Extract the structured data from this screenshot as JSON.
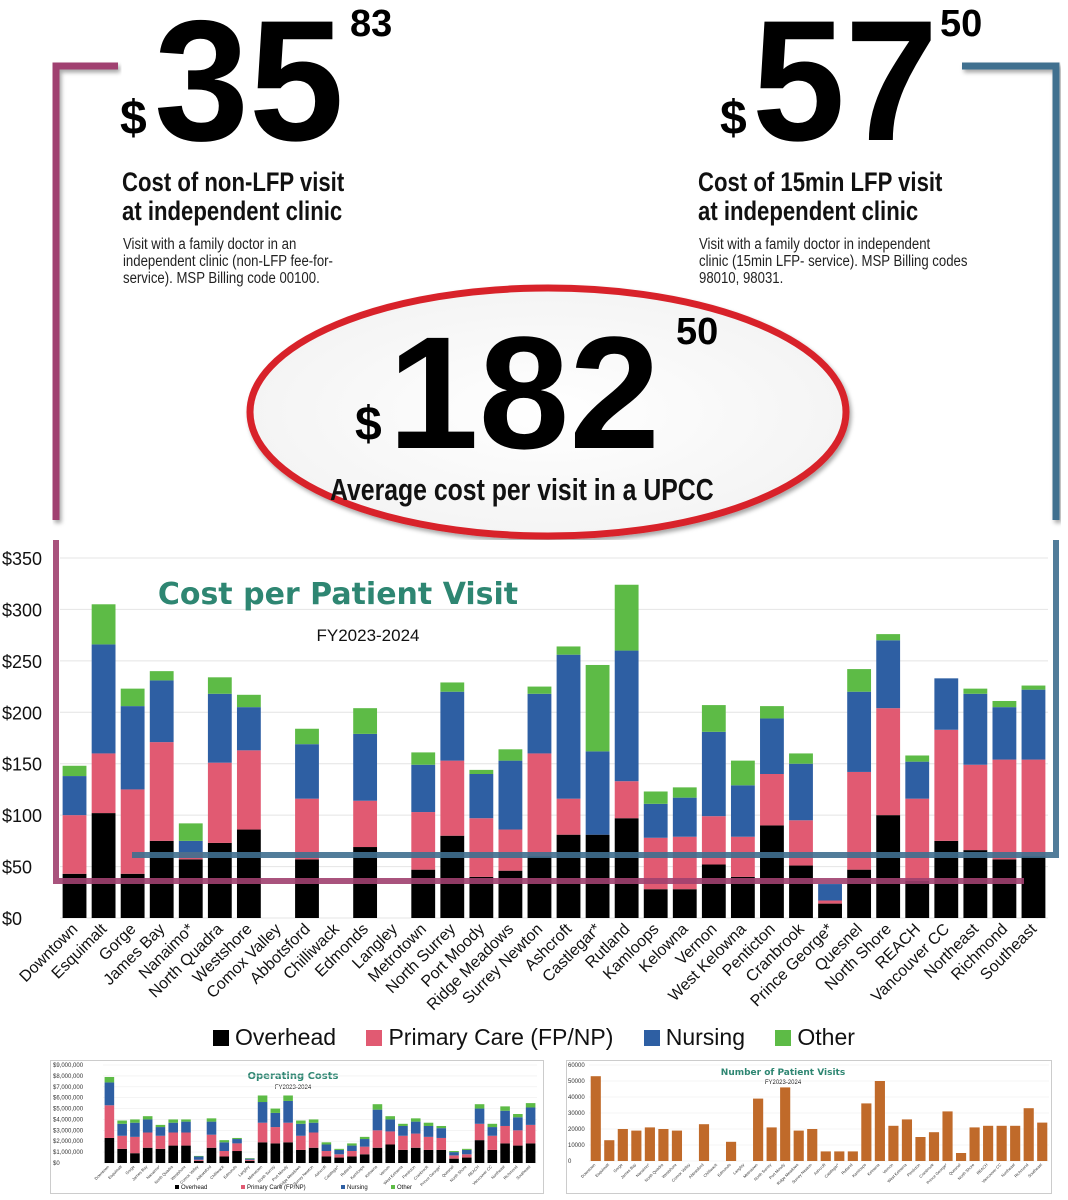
{
  "headline": {
    "non_lfp": {
      "currency": "$",
      "dollars": "35",
      "cents": "83",
      "title": "Cost of non-LFP visit\nat independent clinic",
      "description": "Visit with a family doctor in an\nindependent clinic (non-LFP fee-for-\nservice). MSP Billing code 00100."
    },
    "lfp": {
      "currency": "$",
      "dollars": "57",
      "cents": "50",
      "title": "Cost of 15min LFP visit\nat independent clinic",
      "description": "Visit with a family doctor in independent\nclinic (15min LFP- service).  MSP Billing codes\n98010, 98031."
    },
    "upcc": {
      "currency": "$",
      "dollars": "182",
      "cents": "50",
      "label": "Average cost per visit in a UPCC"
    }
  },
  "colors": {
    "overhead": "#000000",
    "primary_care": "#e15a72",
    "nursing": "#2e5fa3",
    "other": "#5dbb46",
    "title_green": "#2e8672",
    "orange": "#c06a2a",
    "magenta_bracket": "#a0406f",
    "blue_bracket": "#3f6f8f",
    "red_ellipse": "#d8242a"
  },
  "legend": [
    {
      "label": "Overhead",
      "color": "#000000"
    },
    {
      "label": "Primary Care (FP/NP)",
      "color": "#e15a72"
    },
    {
      "label": "Nursing",
      "color": "#2e5fa3"
    },
    {
      "label": "Other",
      "color": "#5dbb46"
    }
  ],
  "chart_data": [
    {
      "type": "bar",
      "stacked": true,
      "title": "Cost per Patient Visit",
      "subtitle": "FY2023-2024",
      "ylim": [
        0,
        350
      ],
      "yticks": [
        "$0",
        "$50",
        "$100",
        "$150",
        "$200",
        "$250",
        "$300",
        "$350"
      ],
      "categories": [
        "Downtown",
        "Esquimalt",
        "Gorge",
        "James Bay",
        "Nanaimo*",
        "North Quadra",
        "Westshore",
        "Comox Valley",
        "Abbotsford",
        "Chilliwack",
        "Edmonds",
        "Langley",
        "Metrotown",
        "North Surrey",
        "Port Moody",
        "Ridge Meadows",
        "Surrey Newton",
        "Ashcroft",
        "Castlegar*",
        "Rutland",
        "Kamloops",
        "Kelowna",
        "Vernon",
        "West Kelowna",
        "Penticton",
        "Cranbrook",
        "Prince George*",
        "Quesnel",
        "North Shore",
        "REACH",
        "Vancouver CC",
        "Northeast",
        "Richmond",
        "Southeast"
      ],
      "series": [
        {
          "name": "Overhead",
          "values": [
            43,
            102,
            43,
            75,
            57,
            73,
            86,
            0,
            57,
            0,
            69,
            0,
            47,
            80,
            40,
            46,
            60,
            81,
            81,
            97,
            28,
            28,
            52,
            40,
            90,
            51,
            14,
            47,
            100,
            36,
            75,
            66,
            57,
            60
          ]
        },
        {
          "name": "Primary Care (FP/NP)",
          "values": [
            57,
            58,
            82,
            96,
            7,
            78,
            77,
            0,
            59,
            0,
            45,
            0,
            56,
            73,
            57,
            40,
            100,
            35,
            0,
            36,
            50,
            51,
            47,
            39,
            50,
            44,
            3,
            95,
            104,
            80,
            108,
            83,
            97,
            94
          ]
        },
        {
          "name": "Nursing",
          "values": [
            38,
            106,
            81,
            60,
            11,
            67,
            42,
            0,
            53,
            0,
            65,
            0,
            46,
            67,
            43,
            67,
            58,
            140,
            81,
            127,
            33,
            38,
            82,
            50,
            54,
            55,
            16,
            78,
            66,
            36,
            50,
            69,
            51,
            68
          ]
        },
        {
          "name": "Other",
          "values": [
            10,
            39,
            17,
            9,
            17,
            16,
            12,
            0,
            15,
            0,
            25,
            0,
            12,
            9,
            4,
            11,
            7,
            8,
            84,
            64,
            12,
            10,
            26,
            24,
            12,
            10,
            0,
            22,
            6,
            6,
            0,
            5,
            6,
            4
          ]
        }
      ]
    },
    {
      "type": "bar",
      "stacked": true,
      "title": "Operating Costs",
      "subtitle": "FY2023-2024",
      "ylim": [
        0,
        9000000
      ],
      "yticks": [
        "$0",
        "$1,000,000",
        "$2,000,000",
        "$3,000,000",
        "$4,000,000",
        "$5,000,000",
        "$6,000,000",
        "$7,000,000",
        "$8,000,000",
        "$9,000,000"
      ],
      "categories": [
        "Downtown",
        "Esquimalt",
        "Gorge",
        "James Bay",
        "Nanaimo*",
        "North Quadra",
        "Westshore",
        "Comox Valley",
        "Abbotsford",
        "Chilliwack",
        "Edmonds",
        "Langley",
        "Metrotown",
        "North Surrey",
        "Port Moody",
        "Ridge Meadows",
        "Surrey Newton",
        "Ashcroft",
        "Castlegar*",
        "Rutland",
        "Kamloops",
        "Kelowna",
        "Vernon",
        "West Kelowna",
        "Penticton",
        "Cranbrook",
        "Prince George*",
        "Quesnel",
        "North Shore",
        "REACH",
        "Vancouver CC",
        "Northeast",
        "Richmond",
        "Southeast"
      ],
      "legend": [
        "Overhead",
        "Primary Care (FP/NP)",
        "Nursing",
        "Other"
      ],
      "series": [
        {
          "name": "Overhead",
          "values": [
            2300000,
            1300000,
            900000,
            1400000,
            1300000,
            1600000,
            1600000,
            200000,
            1400000,
            600000,
            1100000,
            200000,
            1900000,
            1800000,
            1900000,
            1200000,
            1400000,
            600000,
            500000,
            600000,
            800000,
            1400000,
            1700000,
            1200000,
            1400000,
            1200000,
            1200000,
            400000,
            500000,
            2100000,
            1200000,
            1800000,
            1600000,
            1800000
          ]
        },
        {
          "name": "Primary Care (FP/NP)",
          "values": [
            3000000,
            1200000,
            1500000,
            1400000,
            1200000,
            1200000,
            1200000,
            100000,
            1200000,
            500000,
            700000,
            100000,
            1800000,
            1500000,
            1800000,
            1300000,
            1400000,
            500000,
            300000,
            500000,
            700000,
            1600000,
            1200000,
            1300000,
            1300000,
            1200000,
            1100000,
            300000,
            300000,
            1500000,
            1300000,
            1600000,
            1400000,
            1700000
          ]
        },
        {
          "name": "Nursing",
          "values": [
            2100000,
            1100000,
            1300000,
            1200000,
            800000,
            900000,
            1000000,
            300000,
            1200000,
            800000,
            400000,
            100000,
            1900000,
            1300000,
            2000000,
            1100000,
            900000,
            600000,
            400000,
            500000,
            700000,
            1900000,
            1100000,
            900000,
            1100000,
            1000000,
            900000,
            300000,
            400000,
            1400000,
            800000,
            1400000,
            1200000,
            1600000
          ]
        },
        {
          "name": "Other",
          "values": [
            500000,
            300000,
            300000,
            300000,
            200000,
            300000,
            200000,
            50000,
            300000,
            200000,
            100000,
            50000,
            600000,
            400000,
            500000,
            300000,
            300000,
            200000,
            100000,
            200000,
            200000,
            500000,
            300000,
            200000,
            300000,
            300000,
            200000,
            100000,
            100000,
            400000,
            300000,
            400000,
            300000,
            400000
          ]
        }
      ]
    },
    {
      "type": "bar",
      "title": "Number of Patient Visits",
      "subtitle": "FY2023-2024",
      "ylim": [
        0,
        60000
      ],
      "yticks": [
        "0",
        "10000",
        "20000",
        "30000",
        "40000",
        "50000",
        "60000"
      ],
      "categories": [
        "Downtown",
        "Esquimalt",
        "Gorge",
        "James Bay",
        "Nanaimo*",
        "North Quadra",
        "Westshore",
        "Comox Valley",
        "Abbotsford",
        "Chilliwack",
        "Edmonds",
        "Langley",
        "Metrotown",
        "North Surrey",
        "Port Moody",
        "Ridge Meadows",
        "Surrey Newton",
        "Ashcroft",
        "Castlegar*",
        "Rutland",
        "Kamloops",
        "Kelowna",
        "Vernon",
        "West Kelowna",
        "Penticton",
        "Cranbrook",
        "Prince George*",
        "Quesnel",
        "North Shore",
        "REACH",
        "Vancouver CC",
        "Northeast",
        "Richmond",
        "Southeast"
      ],
      "values": [
        53000,
        13000,
        20000,
        19000,
        21000,
        20000,
        19000,
        0,
        23000,
        0,
        12000,
        0,
        39000,
        21000,
        46000,
        19000,
        20000,
        6000,
        6000,
        6000,
        36000,
        50000,
        22000,
        26000,
        15000,
        18000,
        31000,
        5000,
        21000,
        22000,
        22000,
        22000,
        33000,
        24000
      ]
    }
  ]
}
